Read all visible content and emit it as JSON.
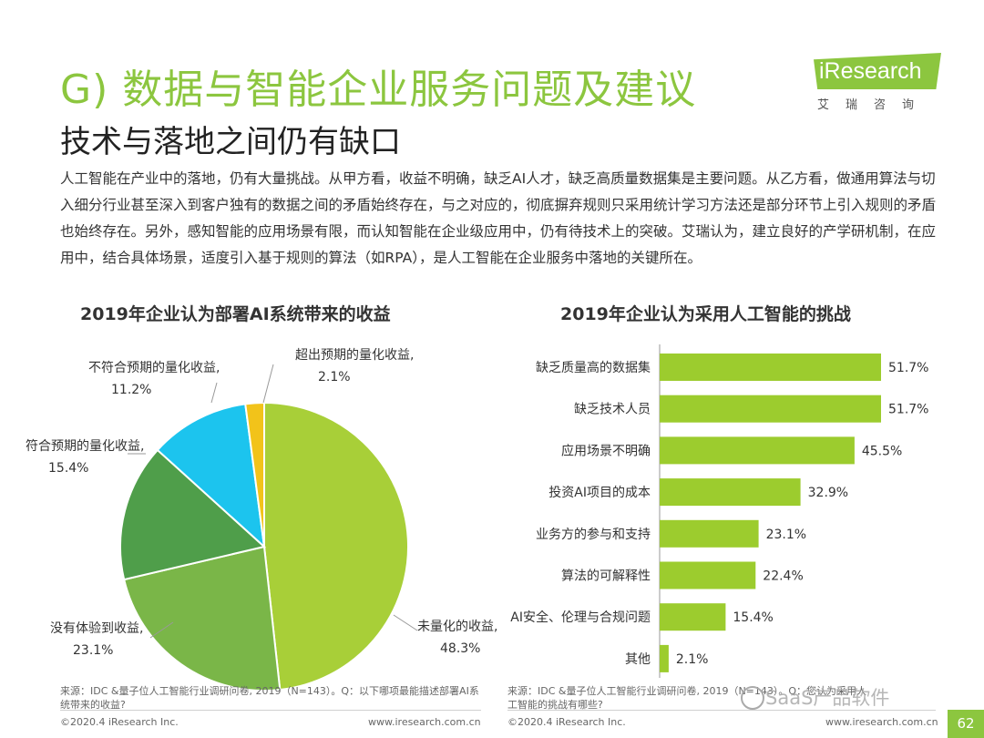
{
  "header": {
    "title": "G) 数据与智能企业服务问题及建议",
    "subtitle": "技术与落地之间仍有缺口"
  },
  "logo": {
    "name": "iResearch",
    "sub": "艾瑞咨询"
  },
  "body": {
    "paragraph": "人工智能在产业中的落地，仍有大量挑战。从甲方看，收益不明确，缺乏AI人才，缺乏高质量数据集是主要问题。从乙方看，做通用算法与切入细分行业甚至深入到客户独有的数据之间的矛盾始终存在，与之对应的，彻底摒弃规则只采用统计学习方法还是部分环节上引入规则的矛盾也始终存在。另外，感知智能的应用场景有限，而认知智能在企业级应用中，仍有待技术上的突破。艾瑞认为，建立良好的产学研机制，在应用中，结合具体场景，适度引入基于规则的算法（如RPA），是人工智能在企业服务中落地的关键所在。"
  },
  "colors": {
    "accent": "#8cc63f",
    "bar": "#9ccc2e",
    "pie": [
      "#a8cf38",
      "#7ab648",
      "#4f9e4a",
      "#1cc4ee",
      "#f2c31a"
    ]
  },
  "chart_data": [
    {
      "type": "pie",
      "title": "2019年企业认为部署AI系统带来的收益",
      "slices": [
        {
          "label": "未量化的收益,",
          "value": 48.3,
          "value_text": "48.3%"
        },
        {
          "label": "没有体验到收益,",
          "value": 23.1,
          "value_text": "23.1%"
        },
        {
          "label": "符合预期的量化收益,",
          "value": 15.4,
          "value_text": "15.4%"
        },
        {
          "label": "不符合预期的量化收益,",
          "value": 11.2,
          "value_text": "11.2%"
        },
        {
          "label": "超出预期的量化收益,",
          "value": 2.1,
          "value_text": "2.1%"
        }
      ]
    },
    {
      "type": "bar",
      "orientation": "horizontal",
      "title": "2019年企业认为采用人工智能的挑战",
      "categories": [
        "缺乏质量高的数据集",
        "缺乏技术人员",
        "应用场景不明确",
        "投资AI项目的成本",
        "业务方的参与和支持",
        "算法的可解释性",
        "AI安全、伦理与合规问题",
        "其他"
      ],
      "values": [
        51.7,
        51.7,
        45.5,
        32.9,
        23.1,
        22.4,
        15.4,
        2.1
      ],
      "value_labels": [
        "51.7%",
        "51.7%",
        "45.5%",
        "32.9%",
        "23.1%",
        "22.4%",
        "15.4%",
        "2.1%"
      ],
      "xlim": [
        0,
        55
      ]
    }
  ],
  "sources": {
    "left": "来源：IDC &量子位人工智能行业调研问卷, 2019（N=143）。Q：以下哪项最能描述部署AI系统带来的收益?",
    "right": "来源：IDC &量子位人工智能行业调研问卷, 2019（N=143）。Q：您认为采用人工智能的挑战有哪些?"
  },
  "footer": {
    "copyright_left": "©2020.4 iResearch Inc.",
    "url_left": "www.iresearch.com.cn",
    "copyright_right": "©2020.4 iResearch Inc.",
    "url_right": "www.iresearch.com.cn",
    "page_number": "62"
  },
  "watermark": {
    "text": "SaaS产品软件"
  }
}
